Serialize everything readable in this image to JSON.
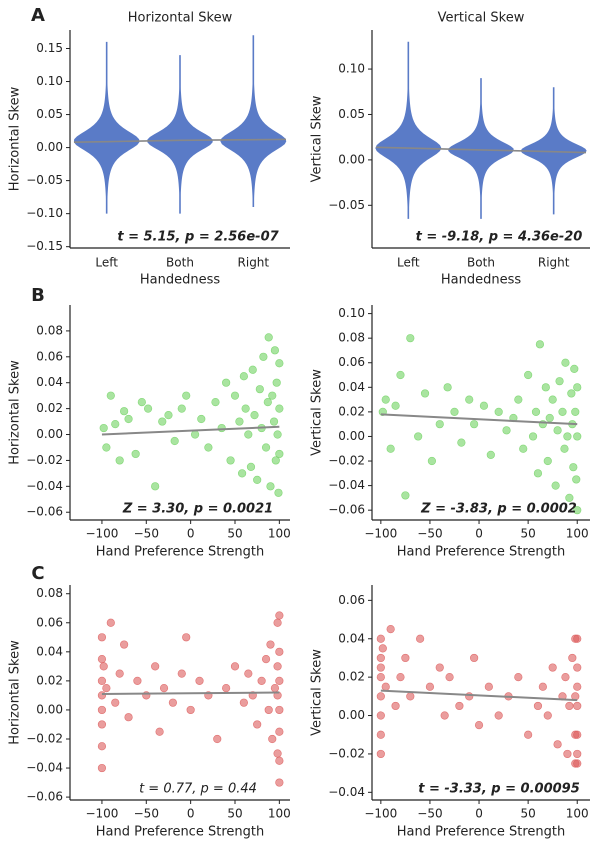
{
  "panel_labels": [
    "A",
    "B",
    "C"
  ],
  "chart_data": [
    {
      "type": "violin",
      "title": "Horizontal Skew",
      "x_label": "Handedness",
      "y_label": "Horizontal Skew",
      "categories": [
        "Left",
        "Both",
        "Right"
      ],
      "color": "#5a7bc7",
      "min": [
        -0.1,
        -0.1,
        -0.09
      ],
      "median": [
        0.01,
        0.01,
        0.01
      ],
      "max": [
        0.16,
        0.14,
        0.17
      ],
      "fit_values": [
        0.009,
        0.011,
        0.012
      ],
      "fit_color": "#888888",
      "ylim": [
        -0.152,
        0.178
      ],
      "yticks": [
        {
          "value": -0.15,
          "label": "−0.15"
        },
        {
          "value": -0.1,
          "label": "−0.10"
        },
        {
          "value": -0.05,
          "label": "−0.05"
        },
        {
          "value": 0,
          "label": "0.00"
        },
        {
          "value": 0.05,
          "label": "0.05"
        },
        {
          "value": 0.1,
          "label": "0.10"
        },
        {
          "value": 0.15,
          "label": "0.15"
        }
      ],
      "annotation": "t = 5.15, p = 2.56e-07",
      "annotation_bold": true
    },
    {
      "type": "violin",
      "title": "Vertical Skew",
      "x_label": "Handedness",
      "y_label": "Vertical Skew",
      "categories": [
        "Left",
        "Both",
        "Right"
      ],
      "color": "#5a7bc7",
      "min": [
        -0.065,
        -0.065,
        -0.06
      ],
      "median": [
        0.013,
        0.011,
        0.01
      ],
      "max": [
        0.13,
        0.09,
        0.08
      ],
      "fit_values": [
        0.013,
        0.011,
        0.009
      ],
      "fit_color": "#888888",
      "ylim": [
        -0.097,
        0.143
      ],
      "yticks": [
        {
          "value": -0.05,
          "label": "−0.05"
        },
        {
          "value": 0,
          "label": "0.00"
        },
        {
          "value": 0.05,
          "label": "0.05"
        },
        {
          "value": 0.1,
          "label": "0.10"
        }
      ],
      "annotation": "t = -9.18, p = 4.36e-20",
      "annotation_bold": true
    },
    {
      "type": "scatter",
      "x_label": "Hand Preference Strength",
      "y_label": "Horizontal Skew",
      "color": "#6fd261",
      "x": [
        -98,
        -95,
        -90,
        -85,
        -80,
        -75,
        -70,
        -62,
        -55,
        -48,
        -40,
        -32,
        -25,
        -18,
        -10,
        -5,
        5,
        12,
        20,
        28,
        35,
        40,
        45,
        50,
        55,
        58,
        60,
        62,
        65,
        68,
        70,
        72,
        75,
        78,
        80,
        82,
        85,
        87,
        88,
        90,
        92,
        94,
        95,
        96,
        97,
        98,
        99,
        100,
        100,
        100
      ],
      "y": [
        0.005,
        -0.01,
        0.03,
        0.008,
        -0.02,
        0.018,
        0.012,
        -0.015,
        0.025,
        0.02,
        -0.04,
        0.01,
        0.015,
        -0.005,
        0.02,
        0.03,
        0.0,
        0.012,
        -0.01,
        0.025,
        0.005,
        0.04,
        -0.02,
        0.03,
        0.01,
        -0.03,
        0.045,
        0.02,
        0.0,
        -0.025,
        0.05,
        0.015,
        -0.035,
        0.035,
        0.005,
        0.06,
        -0.01,
        0.025,
        0.075,
        -0.04,
        0.03,
        0.01,
        0.065,
        -0.02,
        0.04,
        0.0,
        -0.045,
        0.055,
        0.02,
        -0.015
      ],
      "fit": {
        "x": [
          -100,
          100
        ],
        "y": [
          0.0,
          0.006
        ]
      },
      "fit_color": "#888888",
      "xlim": [
        -136,
        112
      ],
      "ylim": [
        -0.066,
        0.1
      ],
      "xticks": [
        {
          "value": -100,
          "label": "−100"
        },
        {
          "value": -50,
          "label": "−50"
        },
        0,
        50,
        100
      ],
      "yticks": [
        {
          "value": -0.06,
          "label": "−0.06"
        },
        {
          "value": -0.04,
          "label": "−0.04"
        },
        {
          "value": -0.02,
          "label": "−0.02"
        },
        {
          "value": 0,
          "label": "0.00"
        },
        {
          "value": 0.02,
          "label": "0.02"
        },
        {
          "value": 0.04,
          "label": "0.04"
        },
        {
          "value": 0.06,
          "label": "0.06"
        },
        {
          "value": 0.08,
          "label": "0.08"
        }
      ],
      "annotation": "Z = 3.30, p = 0.0021",
      "annotation_bold": true
    },
    {
      "type": "scatter",
      "x_label": "Hand Preference Strength",
      "y_label": "Vertical Skew",
      "color": "#6fd261",
      "x": [
        -98,
        -95,
        -90,
        -85,
        -80,
        -75,
        -70,
        -62,
        -55,
        -48,
        -40,
        -32,
        -25,
        -18,
        -10,
        -5,
        5,
        12,
        20,
        28,
        35,
        40,
        45,
        50,
        55,
        58,
        60,
        62,
        65,
        68,
        70,
        72,
        75,
        78,
        80,
        82,
        85,
        87,
        88,
        90,
        92,
        94,
        95,
        96,
        97,
        98,
        99,
        100,
        100,
        100
      ],
      "y": [
        0.02,
        0.03,
        -0.01,
        0.025,
        0.05,
        -0.048,
        0.08,
        0.0,
        0.035,
        -0.02,
        0.01,
        0.04,
        0.02,
        -0.005,
        0.03,
        0.01,
        0.025,
        -0.015,
        0.02,
        0.005,
        0.015,
        0.03,
        -0.01,
        0.05,
        0.0,
        0.02,
        -0.03,
        0.075,
        0.01,
        0.04,
        -0.02,
        0.015,
        0.03,
        -0.04,
        0.005,
        0.045,
        0.02,
        -0.01,
        0.06,
        0.0,
        -0.05,
        0.035,
        0.01,
        -0.025,
        0.055,
        0.02,
        -0.035,
        0.04,
        0.0,
        -0.06
      ],
      "fit": {
        "x": [
          -100,
          100
        ],
        "y": [
          0.018,
          0.01
        ]
      },
      "fit_color": "#888888",
      "xlim": [
        -109,
        113
      ],
      "ylim": [
        -0.068,
        0.107
      ],
      "xticks": [
        {
          "value": -100,
          "label": "−100"
        },
        {
          "value": -50,
          "label": "−50"
        },
        0,
        50,
        100
      ],
      "yticks": [
        {
          "value": -0.06,
          "label": "−0.06"
        },
        {
          "value": -0.04,
          "label": "−0.04"
        },
        {
          "value": -0.02,
          "label": "−0.02"
        },
        {
          "value": 0,
          "label": "0.00"
        },
        {
          "value": 0.02,
          "label": "0.02"
        },
        {
          "value": 0.04,
          "label": "0.04"
        },
        {
          "value": 0.06,
          "label": "0.06"
        },
        {
          "value": 0.08,
          "label": "0.08"
        },
        {
          "value": 0.1,
          "label": "0.10"
        }
      ],
      "annotation": "Z = -3.83, p = 0.0002",
      "annotation_bold": true
    },
    {
      "type": "scatter",
      "x_label": "Hand Preference Strength",
      "y_label": "Horizontal Skew",
      "color": "#dc5b5b",
      "x": [
        -100,
        -100,
        -100,
        -100,
        -100,
        -100,
        -100,
        -100,
        -98,
        -95,
        -90,
        -85,
        -80,
        -75,
        -70,
        -60,
        -50,
        -40,
        -35,
        -30,
        -20,
        -10,
        -5,
        0,
        10,
        20,
        30,
        40,
        50,
        60,
        65,
        70,
        75,
        80,
        85,
        88,
        90,
        92,
        95,
        98,
        98,
        98,
        98,
        100,
        100,
        100,
        100,
        100,
        100,
        100
      ],
      "y": [
        0.05,
        0.035,
        0.02,
        0.01,
        0.0,
        -0.01,
        -0.025,
        -0.04,
        0.03,
        0.015,
        0.06,
        0.005,
        0.025,
        0.045,
        -0.005,
        0.02,
        0.01,
        0.03,
        -0.015,
        0.015,
        0.005,
        0.025,
        0.05,
        0.0,
        0.02,
        0.01,
        -0.02,
        0.015,
        0.03,
        0.005,
        0.025,
        0.01,
        -0.01,
        0.02,
        0.035,
        0.0,
        0.045,
        -0.02,
        0.015,
        0.06,
        0.03,
        0.01,
        -0.03,
        0.065,
        0.04,
        0.02,
        0.0,
        -0.015,
        -0.035,
        -0.05
      ],
      "fit": {
        "x": [
          -100,
          100
        ],
        "y": [
          0.011,
          0.012
        ]
      },
      "fit_color": "#888888",
      "xlim": [
        -136,
        112
      ],
      "ylim": [
        -0.062,
        0.086
      ],
      "xticks": [
        {
          "value": -100,
          "label": "−100"
        },
        {
          "value": -50,
          "label": "−50"
        },
        0,
        50,
        100
      ],
      "yticks": [
        {
          "value": -0.06,
          "label": "−0.06"
        },
        {
          "value": -0.04,
          "label": "−0.04"
        },
        {
          "value": -0.02,
          "label": "−0.02"
        },
        {
          "value": 0,
          "label": "0.00"
        },
        {
          "value": 0.02,
          "label": "0.02"
        },
        {
          "value": 0.04,
          "label": "0.04"
        },
        {
          "value": 0.06,
          "label": "0.06"
        },
        {
          "value": 0.08,
          "label": "0.08"
        }
      ],
      "annotation": "t = 0.77, p = 0.44",
      "annotation_bold": false
    },
    {
      "type": "scatter",
      "x_label": "Hand Preference Strength",
      "y_label": "Vertical Skew",
      "color": "#dc5b5b",
      "x": [
        -100,
        -100,
        -100,
        -100,
        -100,
        -100,
        -100,
        -100,
        -98,
        -95,
        -90,
        -85,
        -80,
        -75,
        -70,
        -60,
        -50,
        -40,
        -35,
        -30,
        -20,
        -10,
        -5,
        0,
        10,
        20,
        30,
        40,
        50,
        60,
        65,
        70,
        75,
        80,
        85,
        88,
        90,
        92,
        95,
        98,
        98,
        98,
        98,
        100,
        100,
        100,
        100,
        100,
        100,
        100
      ],
      "y": [
        0.04,
        0.03,
        0.02,
        0.01,
        0.0,
        -0.01,
        -0.02,
        0.025,
        0.035,
        0.015,
        0.045,
        0.005,
        0.02,
        0.03,
        0.01,
        0.04,
        0.015,
        0.025,
        0.0,
        0.02,
        0.005,
        0.01,
        0.03,
        -0.005,
        0.015,
        0.0,
        0.01,
        0.02,
        -0.01,
        0.005,
        0.015,
        0.0,
        0.025,
        -0.015,
        0.01,
        0.02,
        -0.02,
        0.005,
        0.03,
        0.04,
        0.01,
        -0.01,
        -0.025,
        0.04,
        0.025,
        0.015,
        0.005,
        -0.01,
        -0.02,
        -0.025
      ],
      "fit": {
        "x": [
          -100,
          100
        ],
        "y": [
          0.013,
          0.008
        ]
      },
      "fit_color": "#888888",
      "xlim": [
        -109,
        113
      ],
      "ylim": [
        -0.044,
        0.068
      ],
      "xticks": [
        {
          "value": -100,
          "label": "−100"
        },
        {
          "value": -50,
          "label": "−50"
        },
        0,
        50,
        100
      ],
      "yticks": [
        {
          "value": -0.04,
          "label": "−0.04"
        },
        {
          "value": -0.02,
          "label": "−0.02"
        },
        {
          "value": 0,
          "label": "0.00"
        },
        {
          "value": 0.02,
          "label": "0.02"
        },
        {
          "value": 0.04,
          "label": "0.04"
        },
        {
          "value": 0.06,
          "label": "0.06"
        }
      ],
      "annotation": "t = -3.33, p = 0.00095",
      "annotation_bold": true
    }
  ]
}
